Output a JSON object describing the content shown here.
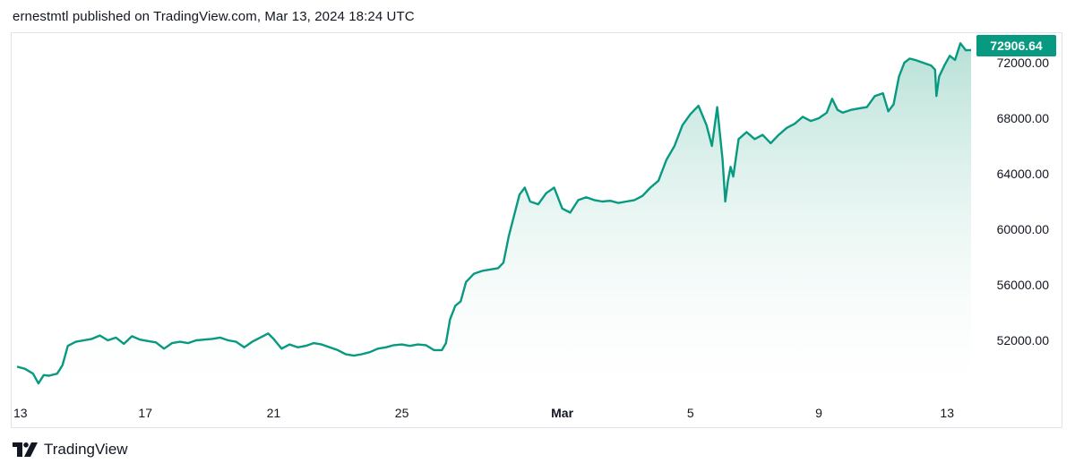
{
  "header": {
    "text": "ernestmtl published on TradingView.com, Mar 13, 2024 18:24 UTC"
  },
  "footer": {
    "brand": "TradingView",
    "logo_icon": "tradingview-logo-icon"
  },
  "colors": {
    "line": "#089981",
    "area_top": "#9ed6c8",
    "area_bottom": "#ffffff",
    "price_tag": "#089981",
    "border": "#e0e3eb"
  },
  "chart_data": {
    "type": "area",
    "title": "",
    "xlabel": "",
    "ylabel": "",
    "last_price_label": "72906.64",
    "x_ticks": [
      {
        "label": "13",
        "x": "2024-02-13",
        "bold": false
      },
      {
        "label": "17",
        "x": "2024-02-17",
        "bold": false
      },
      {
        "label": "21",
        "x": "2024-02-21",
        "bold": false
      },
      {
        "label": "25",
        "x": "2024-02-25",
        "bold": false
      },
      {
        "label": "Mar",
        "x": "2024-03-01",
        "bold": true
      },
      {
        "label": "5",
        "x": "2024-03-05",
        "bold": false
      },
      {
        "label": "9",
        "x": "2024-03-09",
        "bold": false
      },
      {
        "label": "13",
        "x": "2024-03-13",
        "bold": false
      }
    ],
    "y_ticks": [
      {
        "label": "52000.00",
        "value": 52000
      },
      {
        "label": "56000.00",
        "value": 56000
      },
      {
        "label": "60000.00",
        "value": 60000
      },
      {
        "label": "64000.00",
        "value": 64000
      },
      {
        "label": "68000.00",
        "value": 68000
      },
      {
        "label": "72000.00",
        "value": 72000
      }
    ],
    "series": [
      {
        "points": [
          [
            "2024-02-13 00:00",
            50100
          ],
          [
            "2024-02-13 06:00",
            49950
          ],
          [
            "2024-02-13 12:00",
            49600
          ],
          [
            "2024-02-13 16:00",
            48900
          ],
          [
            "2024-02-13 20:00",
            49500
          ],
          [
            "2024-02-14 00:00",
            49450
          ],
          [
            "2024-02-14 06:00",
            49600
          ],
          [
            "2024-02-14 10:00",
            50200
          ],
          [
            "2024-02-14 14:00",
            51600
          ],
          [
            "2024-02-14 20:00",
            51900
          ],
          [
            "2024-02-15 02:00",
            52000
          ],
          [
            "2024-02-15 08:00",
            52100
          ],
          [
            "2024-02-15 14:00",
            52350
          ],
          [
            "2024-02-15 20:00",
            52000
          ],
          [
            "2024-02-16 02:00",
            52200
          ],
          [
            "2024-02-16 08:00",
            51750
          ],
          [
            "2024-02-16 14:00",
            52300
          ],
          [
            "2024-02-16 20:00",
            52050
          ],
          [
            "2024-02-17 02:00",
            51950
          ],
          [
            "2024-02-17 08:00",
            51850
          ],
          [
            "2024-02-17 14:00",
            51400
          ],
          [
            "2024-02-17 20:00",
            51800
          ],
          [
            "2024-02-18 02:00",
            51900
          ],
          [
            "2024-02-18 08:00",
            51800
          ],
          [
            "2024-02-18 14:00",
            52000
          ],
          [
            "2024-02-18 20:00",
            52050
          ],
          [
            "2024-02-19 02:00",
            52100
          ],
          [
            "2024-02-19 08:00",
            52200
          ],
          [
            "2024-02-19 14:00",
            52000
          ],
          [
            "2024-02-19 20:00",
            51900
          ],
          [
            "2024-02-20 02:00",
            51500
          ],
          [
            "2024-02-20 08:00",
            51900
          ],
          [
            "2024-02-20 14:00",
            52200
          ],
          [
            "2024-02-20 20:00",
            52500
          ],
          [
            "2024-02-21 00:00",
            52100
          ],
          [
            "2024-02-21 06:00",
            51400
          ],
          [
            "2024-02-21 12:00",
            51700
          ],
          [
            "2024-02-21 18:00",
            51500
          ],
          [
            "2024-02-22 00:00",
            51600
          ],
          [
            "2024-02-22 06:00",
            51800
          ],
          [
            "2024-02-22 12:00",
            51700
          ],
          [
            "2024-02-22 18:00",
            51500
          ],
          [
            "2024-02-23 00:00",
            51300
          ],
          [
            "2024-02-23 06:00",
            51000
          ],
          [
            "2024-02-23 12:00",
            50900
          ],
          [
            "2024-02-23 18:00",
            51000
          ],
          [
            "2024-02-24 00:00",
            51150
          ],
          [
            "2024-02-24 06:00",
            51400
          ],
          [
            "2024-02-24 12:00",
            51500
          ],
          [
            "2024-02-24 18:00",
            51650
          ],
          [
            "2024-02-25 00:00",
            51700
          ],
          [
            "2024-02-25 06:00",
            51600
          ],
          [
            "2024-02-25 12:00",
            51700
          ],
          [
            "2024-02-25 18:00",
            51650
          ],
          [
            "2024-02-26 00:00",
            51300
          ],
          [
            "2024-02-26 06:00",
            51300
          ],
          [
            "2024-02-26 09:00",
            51800
          ],
          [
            "2024-02-26 12:00",
            53500
          ],
          [
            "2024-02-26 16:00",
            54500
          ],
          [
            "2024-02-26 20:00",
            54800
          ],
          [
            "2024-02-27 00:00",
            56200
          ],
          [
            "2024-02-27 06:00",
            56800
          ],
          [
            "2024-02-27 12:00",
            57000
          ],
          [
            "2024-02-27 18:00",
            57100
          ],
          [
            "2024-02-28 00:00",
            57200
          ],
          [
            "2024-02-28 04:00",
            57600
          ],
          [
            "2024-02-28 08:00",
            59500
          ],
          [
            "2024-02-28 12:00",
            61000
          ],
          [
            "2024-02-28 16:00",
            62500
          ],
          [
            "2024-02-28 20:00",
            63000
          ],
          [
            "2024-02-29 00:00",
            62000
          ],
          [
            "2024-02-29 06:00",
            61800
          ],
          [
            "2024-02-29 12:00",
            62600
          ],
          [
            "2024-02-29 18:00",
            63000
          ],
          [
            "2024-03-01 00:00",
            61500
          ],
          [
            "2024-03-01 06:00",
            61200
          ],
          [
            "2024-03-01 12:00",
            62100
          ],
          [
            "2024-03-01 18:00",
            62300
          ],
          [
            "2024-03-02 00:00",
            62100
          ],
          [
            "2024-03-02 06:00",
            62000
          ],
          [
            "2024-03-02 12:00",
            62050
          ],
          [
            "2024-03-02 18:00",
            61900
          ],
          [
            "2024-03-03 00:00",
            62000
          ],
          [
            "2024-03-03 06:00",
            62100
          ],
          [
            "2024-03-03 12:00",
            62400
          ],
          [
            "2024-03-03 18:00",
            63000
          ],
          [
            "2024-03-04 00:00",
            63500
          ],
          [
            "2024-03-04 06:00",
            65000
          ],
          [
            "2024-03-04 12:00",
            66000
          ],
          [
            "2024-03-04 18:00",
            67500
          ],
          [
            "2024-03-05 00:00",
            68300
          ],
          [
            "2024-03-05 06:00",
            68900
          ],
          [
            "2024-03-05 12:00",
            67500
          ],
          [
            "2024-03-05 16:00",
            66000
          ],
          [
            "2024-03-05 20:00",
            68800
          ],
          [
            "2024-03-06 00:00",
            65000
          ],
          [
            "2024-03-06 02:00",
            62000
          ],
          [
            "2024-03-06 04:00",
            63500
          ],
          [
            "2024-03-06 06:00",
            64500
          ],
          [
            "2024-03-06 08:00",
            63800
          ],
          [
            "2024-03-06 12:00",
            66500
          ],
          [
            "2024-03-06 18:00",
            67000
          ],
          [
            "2024-03-07 00:00",
            66500
          ],
          [
            "2024-03-07 06:00",
            66800
          ],
          [
            "2024-03-07 12:00",
            66200
          ],
          [
            "2024-03-07 18:00",
            66800
          ],
          [
            "2024-03-08 00:00",
            67300
          ],
          [
            "2024-03-08 06:00",
            67600
          ],
          [
            "2024-03-08 12:00",
            68100
          ],
          [
            "2024-03-08 18:00",
            67800
          ],
          [
            "2024-03-09 00:00",
            68000
          ],
          [
            "2024-03-09 06:00",
            68400
          ],
          [
            "2024-03-09 10:00",
            69400
          ],
          [
            "2024-03-09 14:00",
            68600
          ],
          [
            "2024-03-09 18:00",
            68400
          ],
          [
            "2024-03-10 00:00",
            68600
          ],
          [
            "2024-03-10 06:00",
            68700
          ],
          [
            "2024-03-10 12:00",
            68800
          ],
          [
            "2024-03-10 18:00",
            69600
          ],
          [
            "2024-03-11 00:00",
            69800
          ],
          [
            "2024-03-11 04:00",
            68500
          ],
          [
            "2024-03-11 08:00",
            69000
          ],
          [
            "2024-03-11 12:00",
            71000
          ],
          [
            "2024-03-11 16:00",
            72000
          ],
          [
            "2024-03-11 20:00",
            72300
          ],
          [
            "2024-03-12 00:00",
            72200
          ],
          [
            "2024-03-12 06:00",
            72000
          ],
          [
            "2024-03-12 12:00",
            71800
          ],
          [
            "2024-03-12 15:00",
            71500
          ],
          [
            "2024-03-12 16:00",
            69600
          ],
          [
            "2024-03-12 18:00",
            71000
          ],
          [
            "2024-03-12 22:00",
            71800
          ],
          [
            "2024-03-13 02:00",
            72500
          ],
          [
            "2024-03-13 06:00",
            72200
          ],
          [
            "2024-03-13 10:00",
            73400
          ],
          [
            "2024-03-13 14:00",
            72900
          ],
          [
            "2024-03-13 18:00",
            72906.64
          ]
        ]
      }
    ]
  }
}
